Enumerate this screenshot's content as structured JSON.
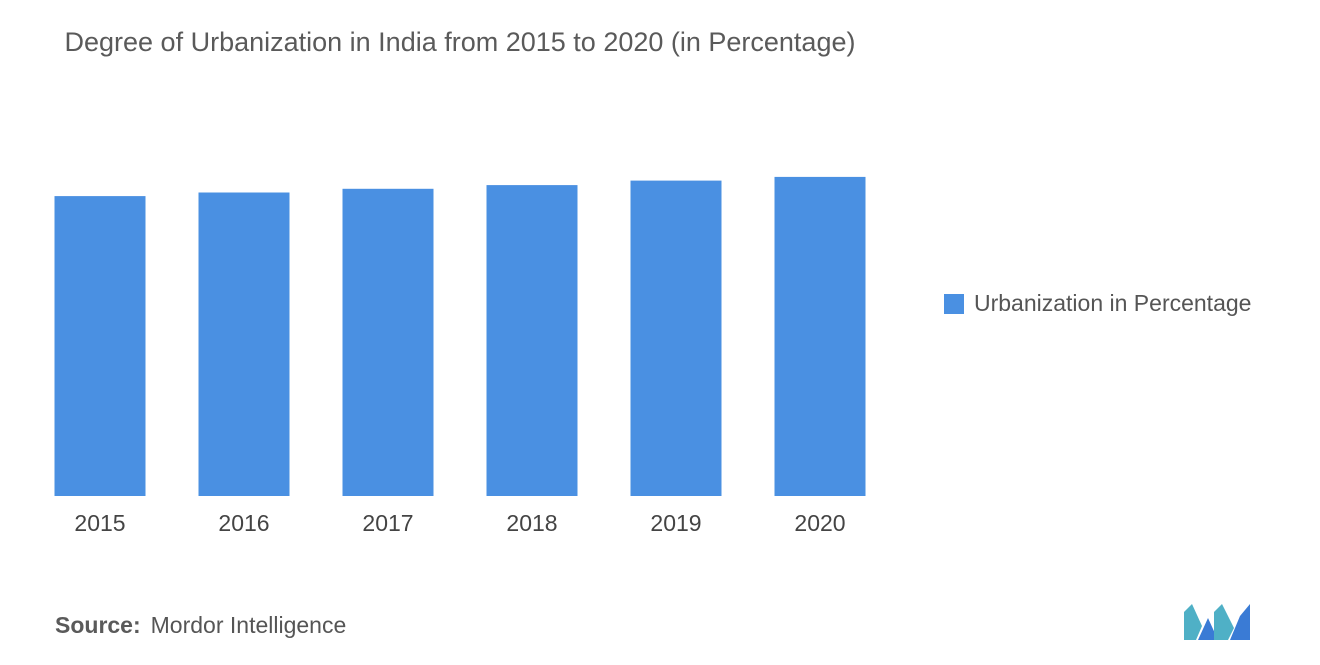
{
  "title": "Degree of Urbanization in India from 2015 to 2020 (in Percentage)",
  "legend": {
    "label": "Urbanization in Percentage"
  },
  "source": {
    "prefix": "Source:",
    "text": "Mordor Intelligence"
  },
  "colors": {
    "bar": "#4a90e2",
    "logo_teal": "#4fb0c6",
    "logo_blue": "#3a7bd5"
  },
  "logo": {
    "icon": "mordor-intelligence-logo-icon"
  },
  "chart_data": {
    "type": "bar",
    "categories": [
      "2015",
      "2016",
      "2017",
      "2018",
      "2019",
      "2020"
    ],
    "series": [
      {
        "name": "Urbanization in Percentage",
        "values": [
          32.8,
          33.2,
          33.6,
          34.0,
          34.5,
          34.9
        ]
      }
    ],
    "ylim": [
      0,
      35
    ],
    "grid": false,
    "legend_position": "right",
    "xlabel": "",
    "ylabel": ""
  }
}
